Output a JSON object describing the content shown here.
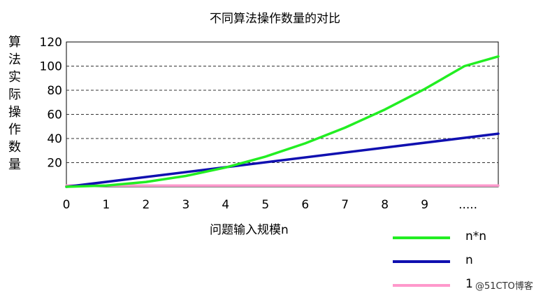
{
  "chart_data": {
    "type": "line",
    "title": "不同算法操作数量的对比",
    "xlabel": "问题输入规模n",
    "ylabel": "算法实际操作数量",
    "x_tick_labels": [
      "0",
      "1",
      "2",
      "3",
      "4",
      "5",
      "6",
      "7",
      "8",
      "9",
      "....."
    ],
    "y_ticks": [
      20,
      40,
      60,
      80,
      100,
      120
    ],
    "xlim": [
      0,
      10.85
    ],
    "ylim": [
      0,
      120
    ],
    "grid": "horizontal dashed",
    "legend_position": "bottom-right",
    "series": [
      {
        "name": "n*n",
        "color": "#22ee22",
        "x": [
          0,
          1,
          2,
          3,
          4,
          5,
          6,
          7,
          8,
          9,
          10,
          10.85
        ],
        "y": [
          0,
          1,
          4,
          9,
          16,
          25,
          36,
          49,
          64,
          81,
          100,
          108
        ]
      },
      {
        "name": "n",
        "color": "#1010b0",
        "x": [
          0,
          10.85
        ],
        "y": [
          0,
          44
        ]
      },
      {
        "name": "1",
        "color": "#ff99cc",
        "x": [
          0,
          10.85
        ],
        "y": [
          1,
          1
        ]
      }
    ]
  },
  "watermark": "@51CTO博客"
}
